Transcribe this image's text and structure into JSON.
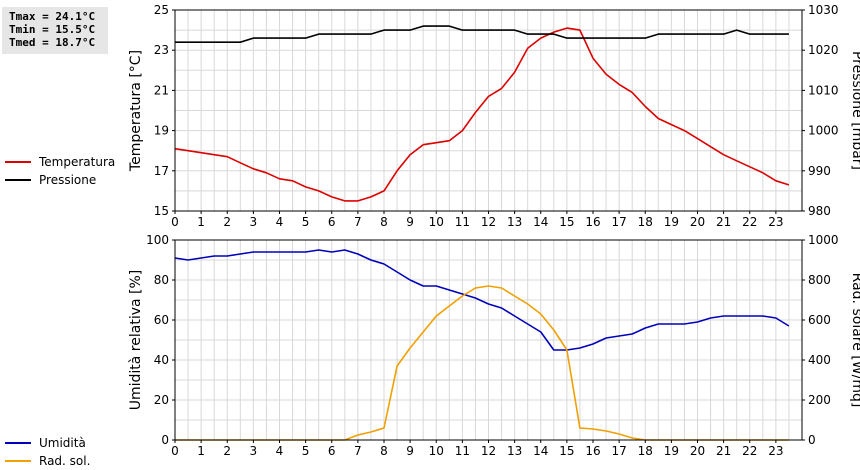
{
  "stats": {
    "tmax": "Tmax = 24.1°C",
    "tmin": "Tmin = 15.5°C",
    "tmed": "Tmed = 18.7°C"
  },
  "legend_top": [
    {
      "label": "Temperatura",
      "color": "#dd0000"
    },
    {
      "label": "Pressione",
      "color": "#000000"
    }
  ],
  "legend_bottom": [
    {
      "label": "Umidità",
      "color": "#0000bb"
    },
    {
      "label": "Rad. sol.",
      "color": "#f0a000"
    }
  ],
  "chart_data": [
    {
      "type": "line",
      "xlim": [
        0,
        24
      ],
      "x_ticks": [
        0,
        1,
        2,
        3,
        4,
        5,
        6,
        7,
        8,
        9,
        10,
        11,
        12,
        13,
        14,
        15,
        16,
        17,
        18,
        19,
        20,
        21,
        22,
        23
      ],
      "ylabel": "Temperatura [°C]",
      "ylim": [
        15,
        25
      ],
      "y_ticks": [
        15,
        17,
        19,
        21,
        23,
        25
      ],
      "y2label": "Pressione [mbar]",
      "y2lim": [
        980,
        1030
      ],
      "y2_ticks": [
        980,
        990,
        1000,
        1010,
        1020,
        1030
      ],
      "grid": true,
      "series": [
        {
          "name": "Temperatura",
          "axis": "left",
          "color": "#dd0000",
          "x": [
            0,
            0.5,
            1,
            1.5,
            2,
            2.5,
            3,
            3.5,
            4,
            4.5,
            5,
            5.5,
            6,
            6.5,
            7,
            7.5,
            8,
            8.5,
            9,
            9.5,
            10,
            10.5,
            11,
            11.5,
            12,
            12.5,
            13,
            13.5,
            14,
            14.5,
            15,
            15.5,
            16,
            16.5,
            17,
            17.5,
            18,
            18.5,
            19,
            19.5,
            20,
            20.5,
            21,
            21.5,
            22,
            22.5,
            23,
            23.5
          ],
          "values": [
            18.1,
            18.0,
            17.9,
            17.8,
            17.7,
            17.4,
            17.1,
            16.9,
            16.6,
            16.5,
            16.2,
            16.0,
            15.7,
            15.5,
            15.5,
            15.7,
            16.0,
            17.0,
            17.8,
            18.3,
            18.4,
            18.5,
            19.0,
            19.9,
            20.7,
            21.1,
            21.9,
            23.1,
            23.6,
            23.9,
            24.1,
            24.0,
            22.6,
            21.8,
            21.3,
            20.9,
            20.2,
            19.6,
            19.3,
            19.0,
            18.6,
            18.2,
            17.8,
            17.5,
            17.2,
            16.9,
            16.5,
            16.3
          ]
        },
        {
          "name": "Pressione",
          "axis": "right",
          "color": "#000000",
          "x": [
            0,
            0.5,
            1,
            1.5,
            2,
            2.5,
            3,
            3.5,
            4,
            4.5,
            5,
            5.5,
            6,
            6.5,
            7,
            7.5,
            8,
            8.5,
            9,
            9.5,
            10,
            10.5,
            11,
            11.5,
            12,
            12.5,
            13,
            13.5,
            14,
            14.5,
            15,
            15.5,
            16,
            16.5,
            17,
            17.5,
            18,
            18.5,
            19,
            19.5,
            20,
            20.5,
            21,
            21.5,
            22,
            22.5,
            23,
            23.5
          ],
          "values": [
            1022,
            1022,
            1022,
            1022,
            1022,
            1022,
            1023,
            1023,
            1023,
            1023,
            1023,
            1024,
            1024,
            1024,
            1024,
            1024,
            1025,
            1025,
            1025,
            1026,
            1026,
            1026,
            1025,
            1025,
            1025,
            1025,
            1025,
            1024,
            1024,
            1024,
            1023,
            1023,
            1023,
            1023,
            1023,
            1023,
            1023,
            1024,
            1024,
            1024,
            1024,
            1024,
            1024,
            1025,
            1024,
            1024,
            1024,
            1024
          ]
        }
      ]
    },
    {
      "type": "line",
      "xlim": [
        0,
        24
      ],
      "x_ticks": [
        0,
        1,
        2,
        3,
        4,
        5,
        6,
        7,
        8,
        9,
        10,
        11,
        12,
        13,
        14,
        15,
        16,
        17,
        18,
        19,
        20,
        21,
        22,
        23
      ],
      "ylabel": "Umidità relativa [%]",
      "ylim": [
        0,
        100
      ],
      "y_ticks": [
        0,
        20,
        40,
        60,
        80,
        100
      ],
      "y2label": "Rad. solare [W/mq]",
      "y2lim": [
        0,
        1000
      ],
      "y2_ticks": [
        0,
        200,
        400,
        600,
        800,
        1000
      ],
      "grid": true,
      "series": [
        {
          "name": "Umidità",
          "axis": "left",
          "color": "#0000bb",
          "x": [
            0,
            0.5,
            1,
            1.5,
            2,
            2.5,
            3,
            3.5,
            4,
            4.5,
            5,
            5.5,
            6,
            6.5,
            7,
            7.5,
            8,
            8.5,
            9,
            9.5,
            10,
            10.5,
            11,
            11.5,
            12,
            12.5,
            13,
            13.5,
            14,
            14.5,
            15,
            15.5,
            16,
            16.5,
            17,
            17.5,
            18,
            18.5,
            19,
            19.5,
            20,
            20.5,
            21,
            21.5,
            22,
            22.5,
            23,
            23.5
          ],
          "values": [
            91,
            90,
            91,
            92,
            92,
            93,
            94,
            94,
            94,
            94,
            94,
            95,
            94,
            95,
            93,
            90,
            88,
            84,
            80,
            77,
            77,
            75,
            73,
            71,
            68,
            66,
            62,
            58,
            54,
            45,
            45,
            46,
            48,
            51,
            52,
            53,
            56,
            58,
            58,
            58,
            59,
            61,
            62,
            62,
            62,
            62,
            61,
            57
          ]
        },
        {
          "name": "Rad. sol.",
          "axis": "right",
          "color": "#f0a000",
          "x": [
            0,
            0.5,
            1,
            1.5,
            2,
            2.5,
            3,
            3.5,
            4,
            4.5,
            5,
            5.5,
            6,
            6.5,
            7,
            7.5,
            8,
            8.5,
            9,
            9.5,
            10,
            10.5,
            11,
            11.5,
            12,
            12.5,
            13,
            13.5,
            14,
            14.5,
            15,
            15.5,
            16,
            16.5,
            17,
            17.5,
            18,
            18.5,
            19,
            19.5,
            20,
            20.5,
            21,
            21.5,
            22,
            22.5,
            23,
            23.5
          ],
          "values": [
            0,
            0,
            0,
            0,
            0,
            0,
            0,
            0,
            0,
            0,
            0,
            0,
            0,
            0,
            25,
            40,
            60,
            370,
            460,
            540,
            620,
            670,
            720,
            760,
            770,
            760,
            720,
            680,
            630,
            550,
            450,
            60,
            55,
            45,
            30,
            10,
            0,
            0,
            0,
            0,
            0,
            0,
            0,
            0,
            0,
            0,
            0,
            0
          ]
        }
      ]
    }
  ]
}
